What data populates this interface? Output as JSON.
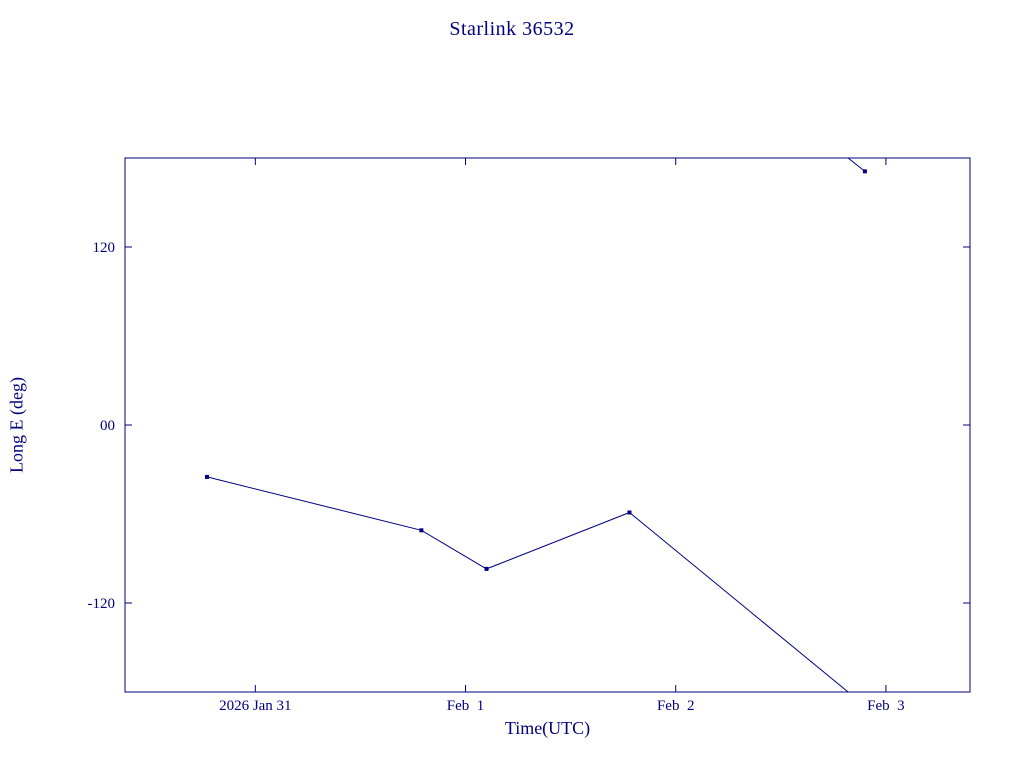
{
  "chart_data": {
    "type": "line",
    "title": "Starlink 36532",
    "xlabel": "Time(UTC)",
    "ylabel": "Long E (deg)",
    "line_color": "#000080",
    "background_color": "#ffffff",
    "grid": false,
    "legend": "none",
    "x_unit": "days, 0 = 2026 Jan 31 00:00 UTC",
    "xlim": [
      -0.62,
      3.4
    ],
    "ylim": [
      -180,
      180
    ],
    "xticks": [
      {
        "value": 0,
        "label": "2026 Jan 31"
      },
      {
        "value": 1,
        "label": "Feb  1"
      },
      {
        "value": 2,
        "label": "Feb  2"
      },
      {
        "value": 3,
        "label": "Feb  3"
      }
    ],
    "yticks": [
      {
        "value": 120,
        "label": "120"
      },
      {
        "value": 0,
        "label": "00"
      },
      {
        "value": -120,
        "label": "-120"
      }
    ],
    "points": [
      {
        "x": -0.23,
        "y": -35
      },
      {
        "x": 0.79,
        "y": -71
      },
      {
        "x": 1.1,
        "y": -97
      },
      {
        "x": 1.78,
        "y": -59
      },
      {
        "x": 2.9,
        "y": 171
      }
    ],
    "segments": [
      [
        [
          -0.23,
          -35
        ],
        [
          0.79,
          -71
        ],
        [
          1.1,
          -97
        ],
        [
          1.78,
          -59
        ],
        [
          2.82,
          -180
        ]
      ],
      [
        [
          2.82,
          180
        ],
        [
          2.9,
          171
        ]
      ]
    ],
    "note": "longitude wraps from -180 to +180 between Feb 2 and Feb 3"
  }
}
